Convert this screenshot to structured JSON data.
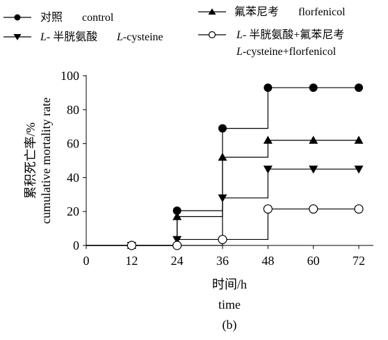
{
  "chart_data": {
    "type": "line",
    "step": true,
    "xlabel_lines": [
      "时间/h",
      "time"
    ],
    "ylabel_lines": [
      "累积死亡率/%",
      "cumulative mortality rate"
    ],
    "xlim": [
      0,
      84
    ],
    "ylim": [
      0,
      100
    ],
    "x_ticks": [
      0,
      12,
      24,
      36,
      48,
      60,
      72
    ],
    "y_ticks": [
      0,
      20,
      40,
      60,
      80,
      100
    ],
    "grid": false,
    "legend_position": "top",
    "panel_label": "(b)",
    "series": [
      {
        "name": "对照",
        "name_en": "control",
        "marker": "filled-circle",
        "x": [
          12,
          24,
          36,
          48,
          60,
          72
        ],
        "values": [
          0,
          20.5,
          69,
          93,
          93,
          93
        ]
      },
      {
        "name": "氟苯尼考",
        "name_en": "florfenicol",
        "marker": "filled-triangle-up",
        "x": [
          12,
          24,
          36,
          48,
          60,
          72
        ],
        "values": [
          0,
          17,
          52,
          62,
          62,
          62
        ]
      },
      {
        "name": "L- 半胱氨酸",
        "name_en": "L-cysteine",
        "marker": "filled-triangle-down",
        "x": [
          12,
          24,
          36,
          48,
          60,
          72
        ],
        "values": [
          0,
          3.5,
          28,
          45,
          45,
          45
        ]
      },
      {
        "name": "L- 半胱氨酸+氟苯尼考",
        "name_en": "L-cysteine+florfenicol",
        "marker": "open-circle",
        "x": [
          12,
          24,
          36,
          48,
          60,
          72
        ],
        "values": [
          0,
          0,
          3.5,
          21.5,
          21.5,
          21.5
        ]
      }
    ]
  }
}
